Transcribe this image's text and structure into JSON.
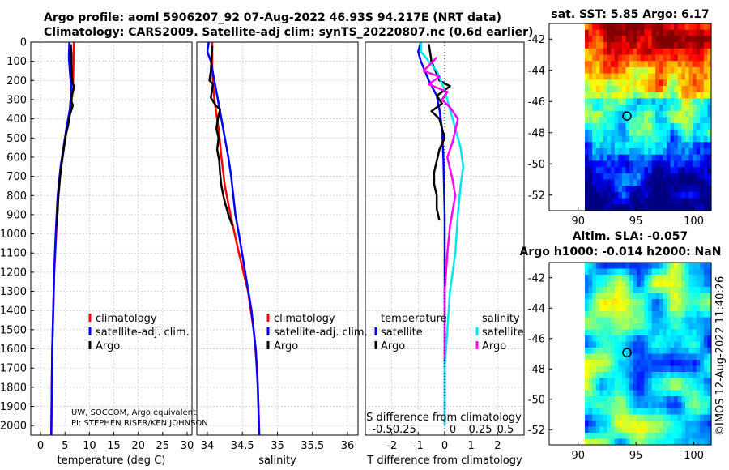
{
  "header": {
    "line1": "Argo profile: aoml 5906207_92 07-Aug-2022 46.93S 94.217E (NRT data)",
    "line2": "Climatology: CARS2009. Satellite-adj clim: synTS_20220807.nc (0.6d earlier)"
  },
  "colors": {
    "climatology": "#ff0000",
    "satellite": "#0000ff",
    "argo": "#000000",
    "cyan": "#00e5ee",
    "magenta": "#ff00ff"
  },
  "depth_axis": {
    "ticks": [
      0,
      100,
      200,
      300,
      400,
      500,
      600,
      700,
      800,
      900,
      1000,
      1100,
      1200,
      1300,
      1400,
      1500,
      1600,
      1700,
      1800,
      1900,
      2000
    ],
    "ylim": [
      0,
      2050
    ]
  },
  "chart_data": [
    {
      "type": "line",
      "id": "temperature",
      "xlabel": "temperature (deg C)",
      "xlim": [
        -2,
        31
      ],
      "xticks": [
        0,
        5,
        10,
        15,
        20,
        25,
        30
      ],
      "xtick_labels": [
        "0",
        "5",
        "10",
        "15",
        "20",
        "25",
        "30"
      ],
      "legend": [
        "climatology",
        "satellite-adj. clim.",
        "Argo"
      ],
      "note": [
        "UW, SOCCOM, Argo equivalent",
        "PI: STEPHEN RISER/KEN JOHNSON"
      ],
      "series": [
        {
          "name": "climatology",
          "color": "#ff0000",
          "width": 2.5,
          "points": [
            [
              6.8,
              0
            ],
            [
              6.7,
              150
            ],
            [
              6.6,
              250
            ],
            [
              6.2,
              350
            ],
            [
              5.4,
              450
            ],
            [
              4.8,
              550
            ],
            [
              4.2,
              650
            ],
            [
              3.6,
              800
            ],
            [
              3.2,
              1000
            ],
            [
              2.8,
              1200
            ],
            [
              2.6,
              1400
            ],
            [
              2.4,
              1600
            ],
            [
              2.3,
              1800
            ],
            [
              2.2,
              2050
            ]
          ]
        },
        {
          "name": "satellite-adj. clim.",
          "color": "#0000ff",
          "width": 2.5,
          "points": [
            [
              5.9,
              0
            ],
            [
              5.8,
              80
            ],
            [
              6.0,
              150
            ],
            [
              6.3,
              250
            ],
            [
              6.0,
              350
            ],
            [
              5.3,
              450
            ],
            [
              4.7,
              550
            ],
            [
              4.1,
              650
            ],
            [
              3.5,
              800
            ],
            [
              3.1,
              1000
            ],
            [
              2.8,
              1200
            ],
            [
              2.6,
              1400
            ],
            [
              2.4,
              1600
            ],
            [
              2.3,
              1800
            ],
            [
              2.2,
              2050
            ]
          ]
        },
        {
          "name": "Argo",
          "color": "#000000",
          "width": 2.5,
          "points": [
            [
              6.2,
              10
            ],
            [
              6.3,
              60
            ],
            [
              6.3,
              120
            ],
            [
              6.4,
              180
            ],
            [
              6.6,
              220
            ],
            [
              6.9,
              230
            ],
            [
              6.7,
              250
            ],
            [
              6.2,
              300
            ],
            [
              6.6,
              330
            ],
            [
              6.0,
              380
            ],
            [
              5.6,
              440
            ],
            [
              5.2,
              480
            ],
            [
              4.9,
              530
            ],
            [
              4.6,
              580
            ],
            [
              4.3,
              640
            ],
            [
              4.0,
              700
            ],
            [
              3.8,
              760
            ],
            [
              3.6,
              820
            ],
            [
              3.5,
              880
            ],
            [
              3.3,
              960
            ]
          ]
        }
      ]
    },
    {
      "type": "line",
      "id": "salinity",
      "xlabel": "salinity",
      "xlim": [
        33.85,
        36.15
      ],
      "xticks": [
        34,
        34.5,
        35,
        35.5,
        36
      ],
      "xtick_labels": [
        "34",
        "34.5",
        "35",
        "35.5",
        "36"
      ],
      "legend": [
        "climatology",
        "satellite-adj. clim.",
        "Argo"
      ],
      "series": [
        {
          "name": "climatology",
          "color": "#ff0000",
          "width": 2.5,
          "points": [
            [
              34.07,
              0
            ],
            [
              34.07,
              150
            ],
            [
              34.1,
              300
            ],
            [
              34.16,
              450
            ],
            [
              34.2,
              600
            ],
            [
              34.25,
              750
            ],
            [
              34.33,
              900
            ],
            [
              34.45,
              1100
            ],
            [
              34.58,
              1300
            ],
            [
              34.66,
              1500
            ],
            [
              34.71,
              1700
            ],
            [
              34.73,
              1900
            ],
            [
              34.74,
              2050
            ]
          ]
        },
        {
          "name": "satellite-adj. clim.",
          "color": "#0000ff",
          "width": 2.5,
          "points": [
            [
              34.02,
              0
            ],
            [
              34.0,
              50
            ],
            [
              34.05,
              100
            ],
            [
              34.1,
              200
            ],
            [
              34.15,
              300
            ],
            [
              34.2,
              400
            ],
            [
              34.25,
              500
            ],
            [
              34.3,
              600
            ],
            [
              34.34,
              700
            ],
            [
              34.37,
              800
            ],
            [
              34.4,
              900
            ],
            [
              34.45,
              1000
            ],
            [
              34.54,
              1200
            ],
            [
              34.63,
              1400
            ],
            [
              34.69,
              1600
            ],
            [
              34.72,
              1800
            ],
            [
              34.74,
              2050
            ]
          ]
        },
        {
          "name": "Argo",
          "color": "#000000",
          "width": 2.5,
          "points": [
            [
              34.07,
              20
            ],
            [
              34.06,
              80
            ],
            [
              34.05,
              150
            ],
            [
              34.03,
              200
            ],
            [
              34.08,
              220
            ],
            [
              34.05,
              290
            ],
            [
              34.12,
              330
            ],
            [
              34.18,
              350
            ],
            [
              34.15,
              400
            ],
            [
              34.13,
              450
            ],
            [
              34.16,
              500
            ],
            [
              34.14,
              560
            ],
            [
              34.17,
              620
            ],
            [
              34.18,
              680
            ],
            [
              34.2,
              750
            ],
            [
              34.24,
              820
            ],
            [
              34.3,
              900
            ],
            [
              34.36,
              960
            ]
          ]
        }
      ]
    },
    {
      "type": "line",
      "id": "difference",
      "xlabel": "T difference from climatology",
      "xlabel_top": "S difference from climatology",
      "xlim": [
        -3,
        3
      ],
      "xticks": [
        -2,
        -1,
        0,
        1,
        2
      ],
      "xtick_labels": [
        "-2",
        "-1",
        "0",
        "1",
        "2"
      ],
      "s_ticks": [
        -0.5,
        -0.25,
        0,
        0.25,
        0.5
      ],
      "s_tick_labels": [
        "-0.5",
        "-0.25",
        "0",
        "0.25",
        "0.5"
      ],
      "legend_headers": [
        "temperature",
        "salinity"
      ],
      "legend_left": [
        "satellite",
        "Argo"
      ],
      "legend_right": [
        "satellite",
        "Argo"
      ],
      "series": [
        {
          "name": "temperature satellite",
          "color": "#0000ff",
          "width": 2.5,
          "points": [
            [
              -0.9,
              0
            ],
            [
              -1.0,
              50
            ],
            [
              -0.9,
              100
            ],
            [
              -0.6,
              200
            ],
            [
              -0.3,
              280
            ],
            [
              -0.2,
              350
            ],
            [
              -0.1,
              450
            ],
            [
              -0.05,
              600
            ],
            [
              0,
              900
            ],
            [
              0,
              1200
            ],
            [
              0,
              1600
            ],
            [
              0,
              2000
            ]
          ]
        },
        {
          "name": "temperature Argo",
          "color": "#000000",
          "width": 2.5,
          "points": [
            [
              -0.6,
              10
            ],
            [
              -0.5,
              100
            ],
            [
              -0.2,
              200
            ],
            [
              0.2,
              230
            ],
            [
              -0.3,
              280
            ],
            [
              -0.1,
              320
            ],
            [
              -0.5,
              360
            ],
            [
              -0.2,
              400
            ],
            [
              -0.1,
              450
            ],
            [
              0,
              500
            ],
            [
              -0.2,
              560
            ],
            [
              -0.3,
              620
            ],
            [
              -0.4,
              680
            ],
            [
              -0.4,
              740
            ],
            [
              -0.3,
              800
            ],
            [
              -0.3,
              870
            ],
            [
              -0.2,
              930
            ]
          ]
        },
        {
          "name": "salinity satellite",
          "color": "#00e5ee",
          "width": 2.5,
          "points": [
            [
              -0.9,
              0
            ],
            [
              -0.9,
              50
            ],
            [
              -0.3,
              150
            ],
            [
              0,
              250
            ],
            [
              0.2,
              350
            ],
            [
              0.4,
              450
            ],
            [
              0.6,
              550
            ],
            [
              0.7,
              650
            ],
            [
              0.6,
              750
            ],
            [
              0.5,
              900
            ],
            [
              0.4,
              1100
            ],
            [
              0.2,
              1300
            ],
            [
              0.1,
              1500
            ],
            [
              0,
              1700
            ],
            [
              0,
              2000
            ]
          ]
        },
        {
          "name": "salinity Argo",
          "color": "#ff00ff",
          "width": 2.5,
          "points": [
            [
              -0.3,
              80
            ],
            [
              -0.8,
              150
            ],
            [
              -0.2,
              180
            ],
            [
              -0.6,
              220
            ],
            [
              0.1,
              260
            ],
            [
              -0.1,
              300
            ],
            [
              0.2,
              340
            ],
            [
              0.5,
              400
            ],
            [
              0.4,
              460
            ],
            [
              0.3,
              520
            ],
            [
              0.1,
              600
            ],
            [
              0.2,
              660
            ],
            [
              0.3,
              720
            ],
            [
              0.4,
              800
            ],
            [
              0.3,
              880
            ],
            [
              0.2,
              960
            ],
            [
              0.1,
              1100
            ],
            [
              0,
              1300
            ],
            [
              0,
              1650
            ]
          ]
        }
      ]
    },
    {
      "type": "heatmap",
      "id": "sst-map",
      "title": "sat. SST: 5.85 Argo: 6.17",
      "xlim": [
        87.5,
        101.5
      ],
      "ylim": [
        -53,
        -41
      ],
      "xticks": [
        90,
        95,
        100
      ],
      "yticks": [
        -52,
        -50,
        -48,
        -46,
        -44,
        -42
      ],
      "argo_point": [
        94.22,
        -46.93
      ]
    },
    {
      "type": "heatmap",
      "id": "sla-map",
      "title_line1": "Altim. SLA: -0.057",
      "title_line2": "Argo h1000: -0.014 h2000: NaN",
      "xlim": [
        87.5,
        101.5
      ],
      "ylim": [
        -53,
        -41
      ],
      "xticks": [
        90,
        95,
        100
      ],
      "yticks": [
        -52,
        -50,
        -48,
        -46,
        -44,
        -42
      ],
      "argo_point": [
        94.22,
        -46.93
      ]
    }
  ],
  "timestamp": "©IMOS 12-Aug-2022 11:40:26"
}
